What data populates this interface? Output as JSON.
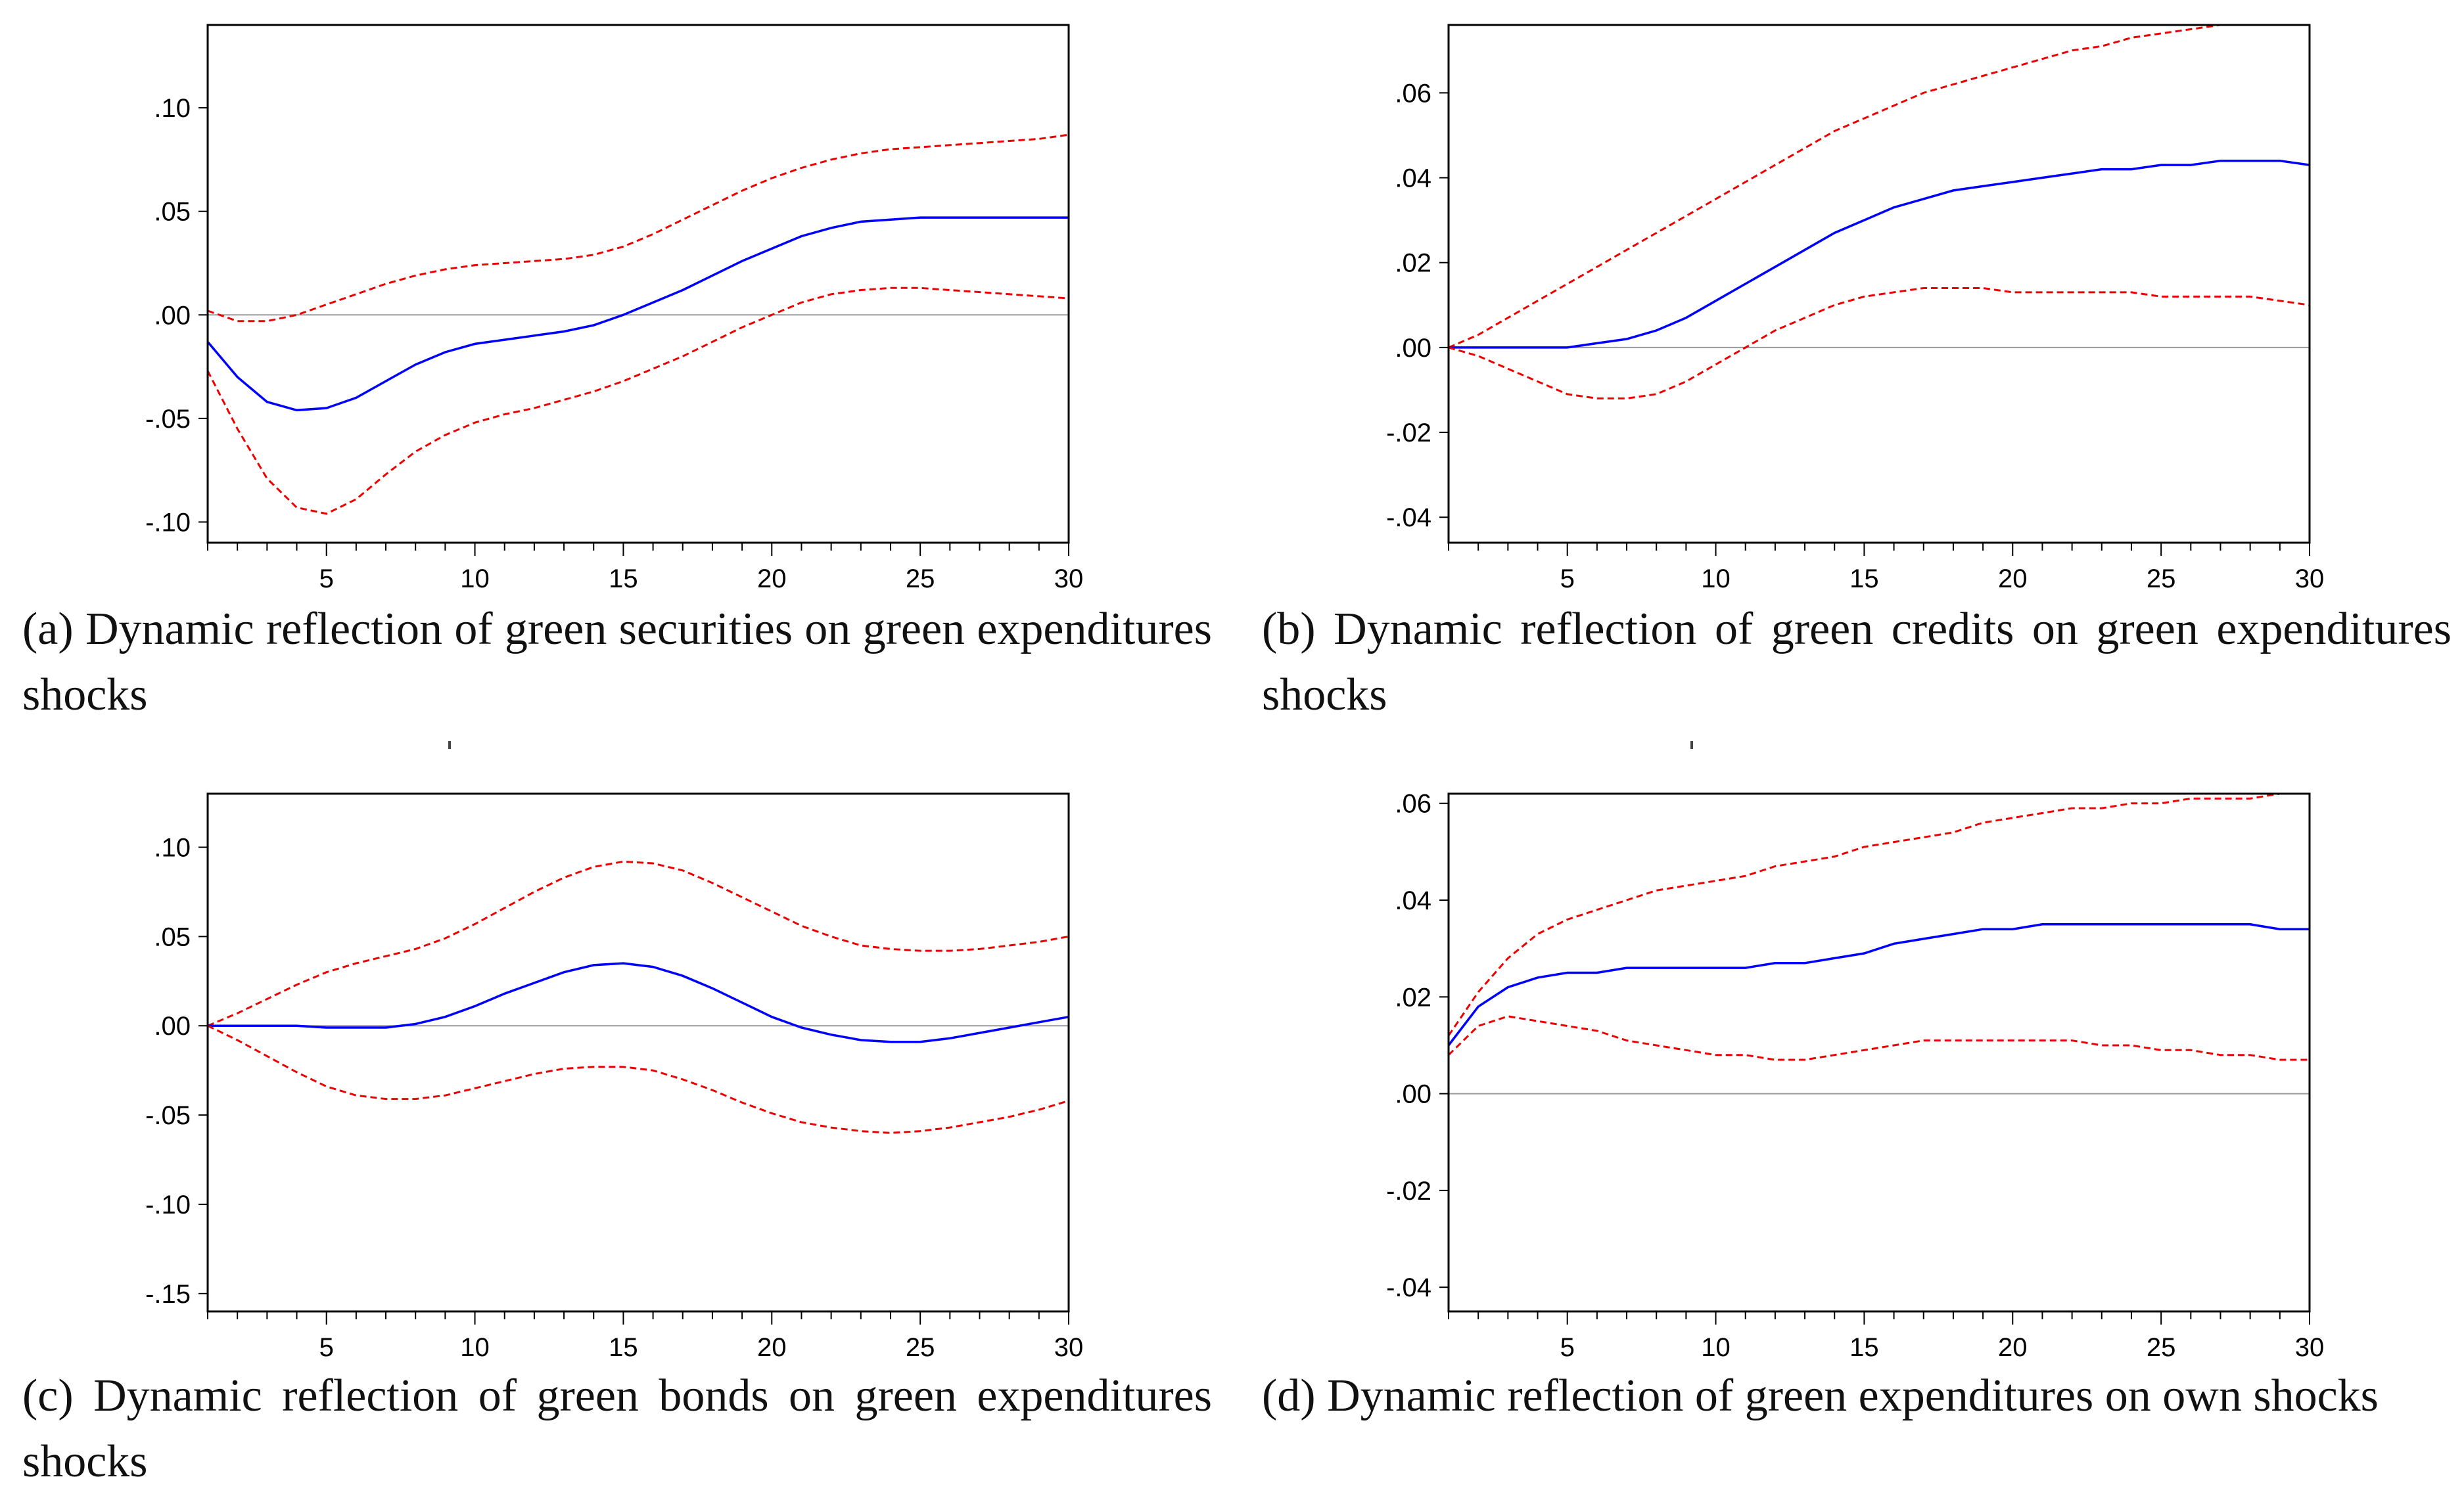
{
  "colors": {
    "mean": "#0000ff",
    "band": "#ee0000",
    "zero": "#9a9a9a",
    "axis": "#000000"
  },
  "chart_data": [
    {
      "id": "a",
      "type": "line",
      "caption": "(a) Dynamic reflection of green securities on green expenditures shocks",
      "ylim": [
        -0.11,
        0.14
      ],
      "xlim": [
        1,
        30
      ],
      "xticks": [
        5,
        10,
        15,
        20,
        25,
        30
      ],
      "yticks": [
        -0.1,
        -0.05,
        0.0,
        0.05,
        0.1
      ],
      "yticklabels": [
        "-.10",
        "-.05",
        ".00",
        ".05",
        ".10"
      ],
      "x": [
        1,
        2,
        3,
        4,
        5,
        6,
        7,
        8,
        9,
        10,
        11,
        12,
        13,
        14,
        15,
        16,
        17,
        18,
        19,
        20,
        21,
        22,
        23,
        24,
        25,
        26,
        27,
        28,
        29,
        30
      ],
      "series": [
        {
          "role": "upper",
          "values": [
            0.002,
            -0.003,
            -0.003,
            0.0,
            0.005,
            0.01,
            0.015,
            0.019,
            0.022,
            0.024,
            0.025,
            0.026,
            0.027,
            0.029,
            0.033,
            0.039,
            0.046,
            0.053,
            0.06,
            0.066,
            0.071,
            0.075,
            0.078,
            0.08,
            0.081,
            0.082,
            0.083,
            0.084,
            0.085,
            0.087
          ]
        },
        {
          "role": "mean",
          "values": [
            -0.013,
            -0.03,
            -0.042,
            -0.046,
            -0.045,
            -0.04,
            -0.032,
            -0.024,
            -0.018,
            -0.014,
            -0.012,
            -0.01,
            -0.008,
            -0.005,
            0.0,
            0.006,
            0.012,
            0.019,
            0.026,
            0.032,
            0.038,
            0.042,
            0.045,
            0.046,
            0.047,
            0.047,
            0.047,
            0.047,
            0.047,
            0.047
          ]
        },
        {
          "role": "lower",
          "values": [
            -0.027,
            -0.055,
            -0.079,
            -0.093,
            -0.096,
            -0.089,
            -0.077,
            -0.066,
            -0.058,
            -0.052,
            -0.048,
            -0.045,
            -0.041,
            -0.037,
            -0.032,
            -0.026,
            -0.02,
            -0.013,
            -0.006,
            0.0,
            0.006,
            0.01,
            0.012,
            0.013,
            0.013,
            0.012,
            0.011,
            0.01,
            0.009,
            0.008
          ]
        }
      ]
    },
    {
      "id": "b",
      "type": "line",
      "caption": "(b) Dynamic reflection of green credits on green expenditures shocks",
      "ylim": [
        -0.046,
        0.076
      ],
      "xlim": [
        1,
        30
      ],
      "xticks": [
        5,
        10,
        15,
        20,
        25,
        30
      ],
      "yticks": [
        -0.04,
        -0.02,
        0.0,
        0.02,
        0.04,
        0.06
      ],
      "yticklabels": [
        "-.04",
        "-.02",
        ".00",
        ".02",
        ".04",
        ".06"
      ],
      "x": [
        1,
        2,
        3,
        4,
        5,
        6,
        7,
        8,
        9,
        10,
        11,
        12,
        13,
        14,
        15,
        16,
        17,
        18,
        19,
        20,
        21,
        22,
        23,
        24,
        25,
        26,
        27,
        28,
        29,
        30
      ],
      "series": [
        {
          "role": "upper",
          "values": [
            0.0,
            0.003,
            0.007,
            0.011,
            0.015,
            0.019,
            0.023,
            0.027,
            0.031,
            0.035,
            0.039,
            0.043,
            0.047,
            0.051,
            0.054,
            0.057,
            0.06,
            0.062,
            0.064,
            0.066,
            0.068,
            0.07,
            0.071,
            0.073,
            0.074,
            0.075,
            0.076,
            0.076,
            0.076,
            0.076
          ]
        },
        {
          "role": "mean",
          "values": [
            0.0,
            0.0,
            0.0,
            0.0,
            0.0,
            0.001,
            0.002,
            0.004,
            0.007,
            0.011,
            0.015,
            0.019,
            0.023,
            0.027,
            0.03,
            0.033,
            0.035,
            0.037,
            0.038,
            0.039,
            0.04,
            0.041,
            0.042,
            0.042,
            0.043,
            0.043,
            0.044,
            0.044,
            0.044,
            0.043
          ]
        },
        {
          "role": "lower",
          "values": [
            0.0,
            -0.002,
            -0.005,
            -0.008,
            -0.011,
            -0.012,
            -0.012,
            -0.011,
            -0.008,
            -0.004,
            0.0,
            0.004,
            0.007,
            0.01,
            0.012,
            0.013,
            0.014,
            0.014,
            0.014,
            0.013,
            0.013,
            0.013,
            0.013,
            0.013,
            0.012,
            0.012,
            0.012,
            0.012,
            0.011,
            0.01
          ]
        }
      ]
    },
    {
      "id": "c",
      "type": "line",
      "caption": "(c) Dynamic reflection of green bonds on green expenditures shocks",
      "ylim": [
        -0.16,
        0.13
      ],
      "xlim": [
        1,
        30
      ],
      "xticks": [
        5,
        10,
        15,
        20,
        25,
        30
      ],
      "yticks": [
        -0.15,
        -0.1,
        -0.05,
        0.0,
        0.05,
        0.1
      ],
      "yticklabels": [
        "-.15",
        "-.10",
        "-.05",
        ".00",
        ".05",
        ".10"
      ],
      "x": [
        1,
        2,
        3,
        4,
        5,
        6,
        7,
        8,
        9,
        10,
        11,
        12,
        13,
        14,
        15,
        16,
        17,
        18,
        19,
        20,
        21,
        22,
        23,
        24,
        25,
        26,
        27,
        28,
        29,
        30
      ],
      "series": [
        {
          "role": "upper",
          "values": [
            0.0,
            0.007,
            0.015,
            0.023,
            0.03,
            0.035,
            0.039,
            0.043,
            0.049,
            0.057,
            0.066,
            0.075,
            0.083,
            0.089,
            0.092,
            0.091,
            0.087,
            0.08,
            0.072,
            0.064,
            0.056,
            0.05,
            0.045,
            0.043,
            0.042,
            0.042,
            0.043,
            0.045,
            0.047,
            0.05
          ]
        },
        {
          "role": "mean",
          "values": [
            0.0,
            0.0,
            0.0,
            0.0,
            -0.001,
            -0.001,
            -0.001,
            0.001,
            0.005,
            0.011,
            0.018,
            0.024,
            0.03,
            0.034,
            0.035,
            0.033,
            0.028,
            0.021,
            0.013,
            0.005,
            -0.001,
            -0.005,
            -0.008,
            -0.009,
            -0.009,
            -0.007,
            -0.004,
            -0.001,
            0.002,
            0.005
          ]
        },
        {
          "role": "lower",
          "values": [
            0.0,
            -0.008,
            -0.017,
            -0.026,
            -0.034,
            -0.039,
            -0.041,
            -0.041,
            -0.039,
            -0.035,
            -0.031,
            -0.027,
            -0.024,
            -0.023,
            -0.023,
            -0.025,
            -0.03,
            -0.036,
            -0.043,
            -0.049,
            -0.054,
            -0.057,
            -0.059,
            -0.06,
            -0.059,
            -0.057,
            -0.054,
            -0.051,
            -0.047,
            -0.042
          ]
        }
      ]
    },
    {
      "id": "d",
      "type": "line",
      "caption": "(d) Dynamic reflection of green expenditures on own shocks",
      "ylim": [
        -0.045,
        0.062
      ],
      "xlim": [
        1,
        30
      ],
      "xticks": [
        5,
        10,
        15,
        20,
        25,
        30
      ],
      "yticks": [
        -0.04,
        -0.02,
        0.0,
        0.02,
        0.04,
        0.06
      ],
      "yticklabels": [
        "-.04",
        "-.02",
        ".00",
        ".02",
        ".04",
        ".06"
      ],
      "x": [
        1,
        2,
        3,
        4,
        5,
        6,
        7,
        8,
        9,
        10,
        11,
        12,
        13,
        14,
        15,
        16,
        17,
        18,
        19,
        20,
        21,
        22,
        23,
        24,
        25,
        26,
        27,
        28,
        29,
        30
      ],
      "series": [
        {
          "role": "upper",
          "values": [
            0.012,
            0.021,
            0.028,
            0.033,
            0.036,
            0.038,
            0.04,
            0.042,
            0.043,
            0.044,
            0.045,
            0.047,
            0.048,
            0.049,
            0.051,
            0.052,
            0.053,
            0.054,
            0.056,
            0.057,
            0.058,
            0.059,
            0.059,
            0.06,
            0.06,
            0.061,
            0.061,
            0.061,
            0.062,
            0.062
          ]
        },
        {
          "role": "mean",
          "values": [
            0.01,
            0.018,
            0.022,
            0.024,
            0.025,
            0.025,
            0.026,
            0.026,
            0.026,
            0.026,
            0.026,
            0.027,
            0.027,
            0.028,
            0.029,
            0.031,
            0.032,
            0.033,
            0.034,
            0.034,
            0.035,
            0.035,
            0.035,
            0.035,
            0.035,
            0.035,
            0.035,
            0.035,
            0.034,
            0.034
          ]
        },
        {
          "role": "lower",
          "values": [
            0.008,
            0.014,
            0.016,
            0.015,
            0.014,
            0.013,
            0.011,
            0.01,
            0.009,
            0.008,
            0.008,
            0.007,
            0.007,
            0.008,
            0.009,
            0.01,
            0.011,
            0.011,
            0.011,
            0.011,
            0.011,
            0.011,
            0.01,
            0.01,
            0.009,
            0.009,
            0.008,
            0.008,
            0.007,
            0.007
          ]
        }
      ]
    }
  ]
}
